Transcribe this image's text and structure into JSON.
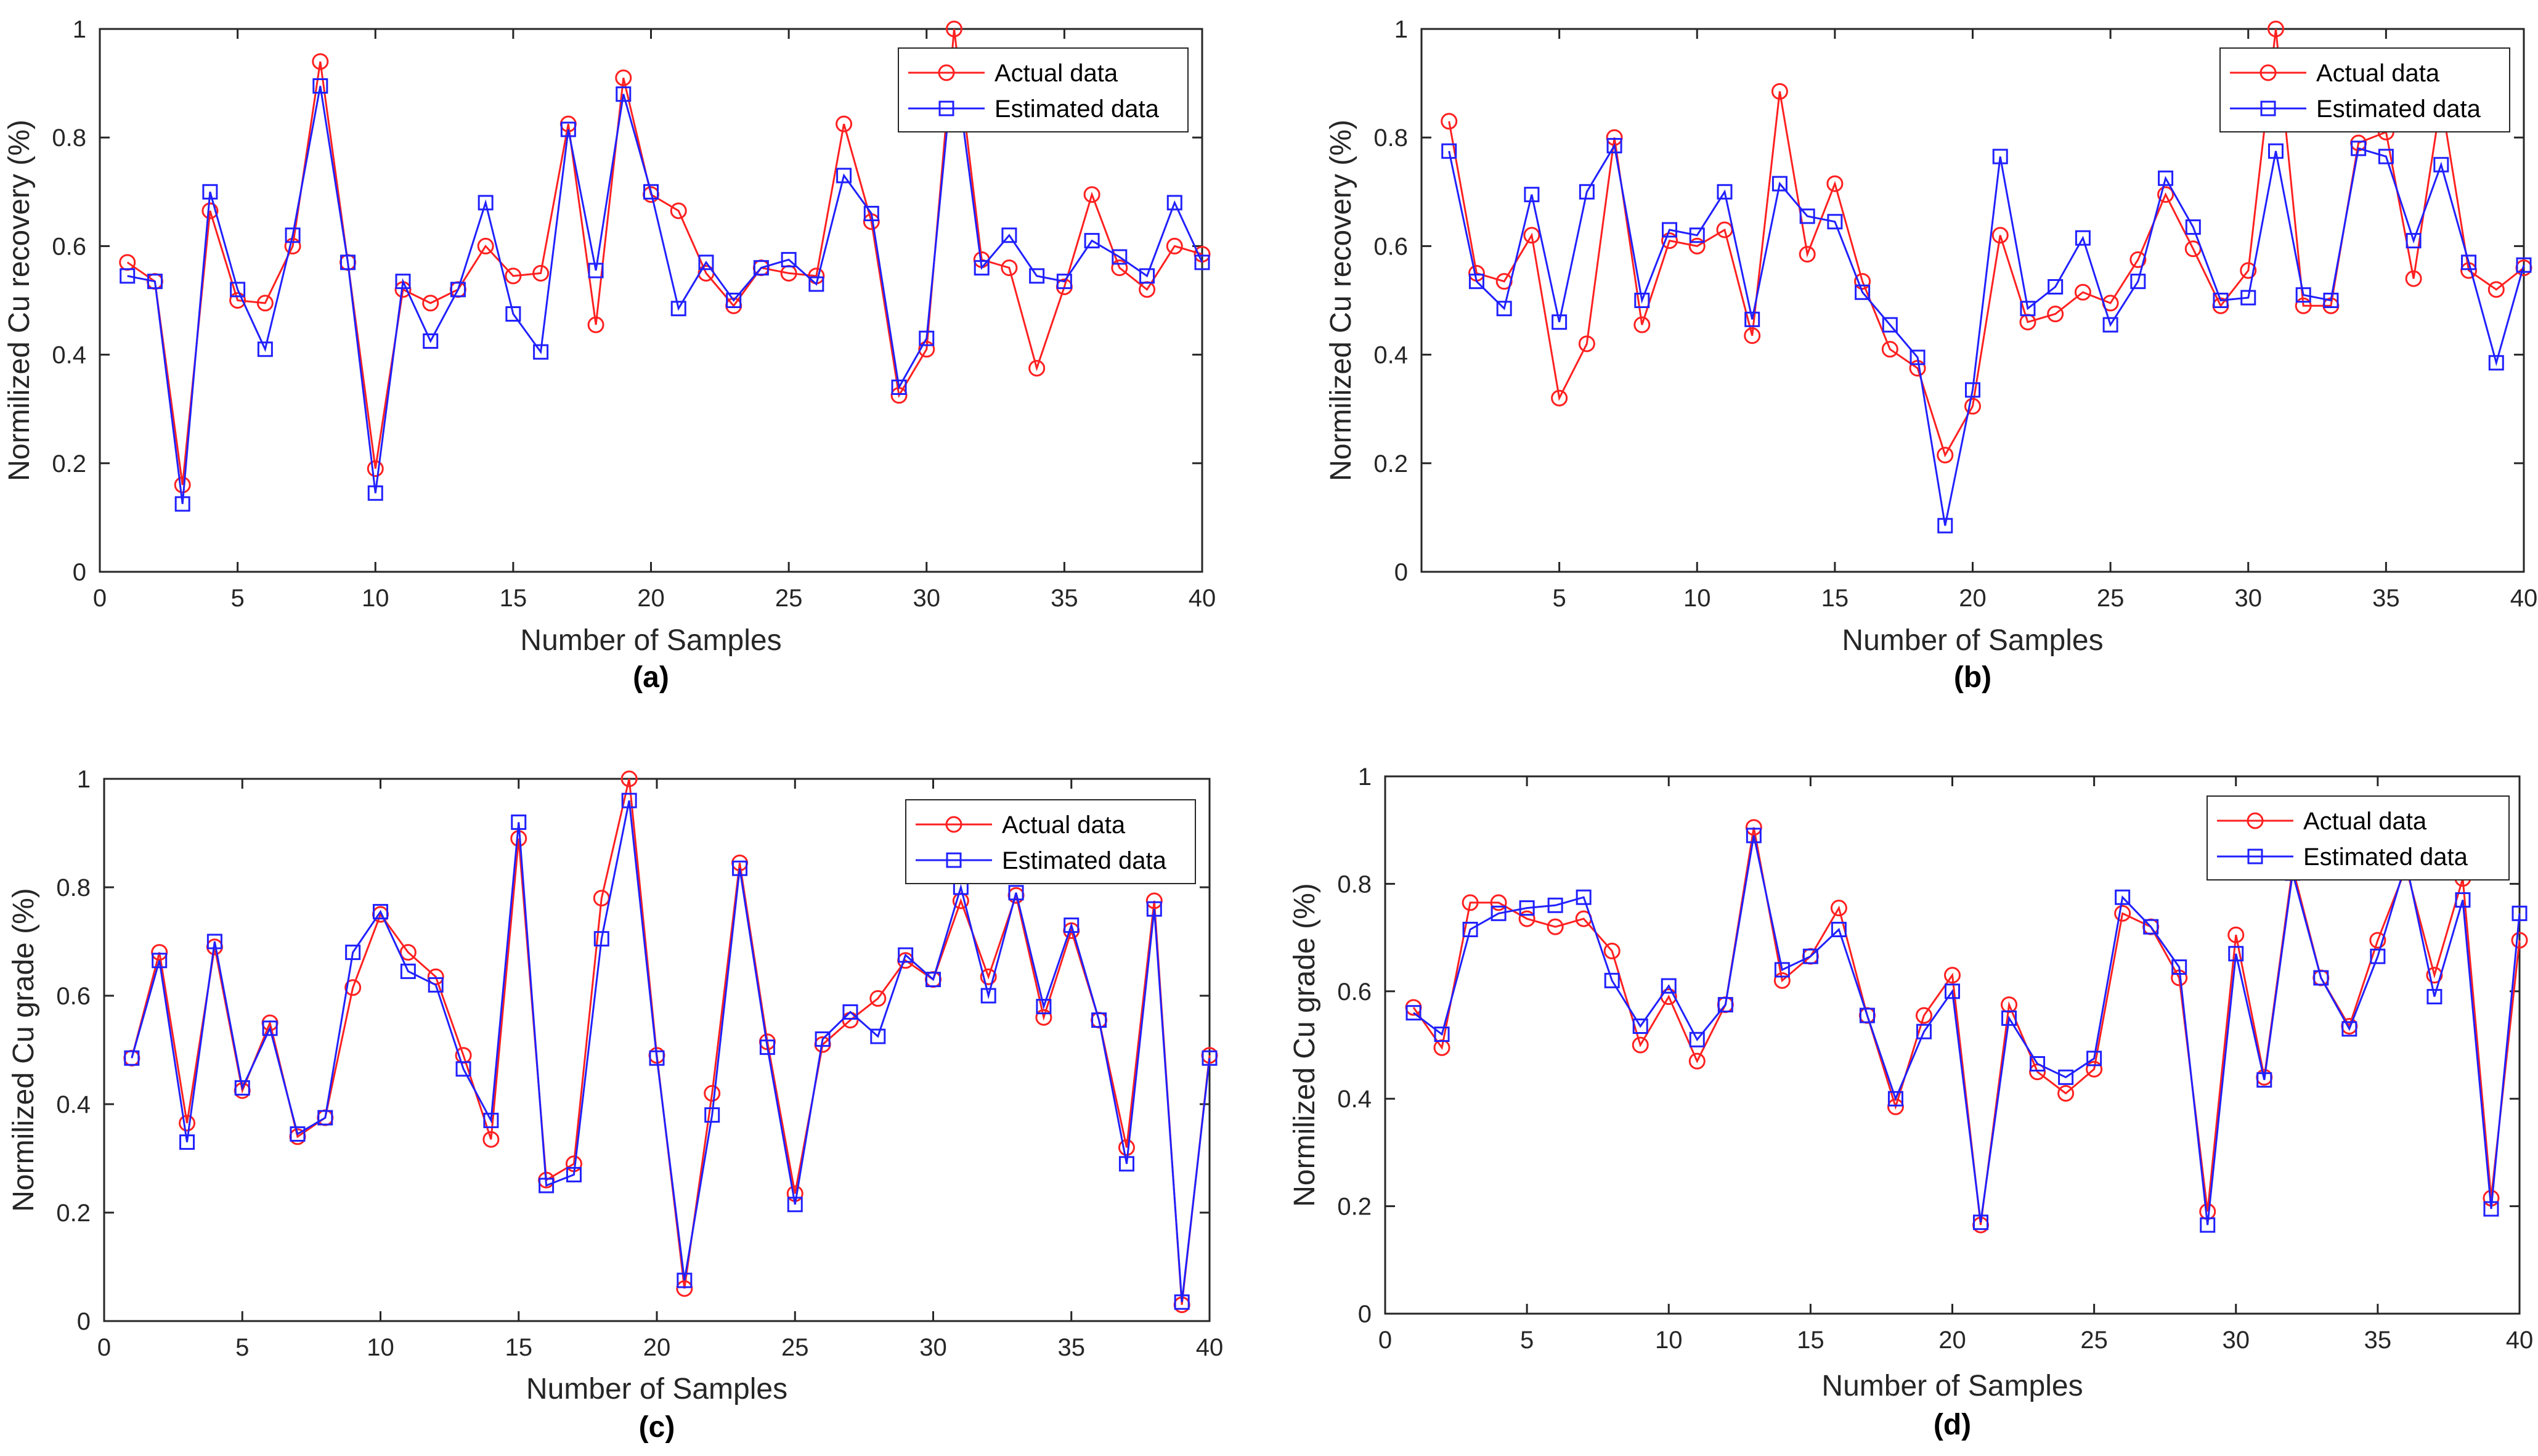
{
  "colors": {
    "actual": "#ff2020",
    "estimated": "#2020ff",
    "axis": "#262626"
  },
  "legend": {
    "actual": "Actual data",
    "estimated": "Estimated data"
  },
  "chart_data": [
    {
      "type": "line",
      "panel": "(a)",
      "xlabel": "Number of Samples",
      "ylabel": "Normilized Cu recovery (%)",
      "xlim": [
        0,
        40
      ],
      "ylim": [
        0,
        1
      ],
      "xticks": [
        "0",
        "5",
        "10",
        "15",
        "20",
        "25",
        "30",
        "35",
        "40"
      ],
      "yticks": [
        "0",
        "0.2",
        "0.4",
        "0.6",
        "0.8",
        "1"
      ],
      "grid": false,
      "legend_position": "top-right",
      "x": [
        1,
        2,
        3,
        4,
        5,
        6,
        7,
        8,
        9,
        10,
        11,
        12,
        13,
        14,
        15,
        16,
        17,
        18,
        19,
        20,
        21,
        22,
        23,
        24,
        25,
        26,
        27,
        28,
        29,
        30,
        31,
        32,
        33,
        34,
        35,
        36,
        37,
        38,
        39,
        40
      ],
      "series": [
        {
          "name": "Actual data",
          "marker": "circle",
          "values": [
            0.57,
            0.535,
            0.16,
            0.665,
            0.5,
            0.495,
            0.6,
            0.94,
            0.57,
            0.19,
            0.52,
            0.495,
            0.52,
            0.6,
            0.545,
            0.55,
            0.825,
            0.455,
            0.91,
            0.695,
            0.665,
            0.55,
            0.49,
            0.56,
            0.55,
            0.545,
            0.825,
            0.645,
            0.325,
            0.41,
            1.0,
            0.575,
            0.56,
            0.375,
            0.525,
            0.695,
            0.56,
            0.52,
            0.6,
            0.585
          ]
        },
        {
          "name": "Estimated data",
          "marker": "square",
          "values": [
            0.545,
            0.535,
            0.125,
            0.7,
            0.52,
            0.41,
            0.62,
            0.895,
            0.57,
            0.145,
            0.535,
            0.425,
            0.52,
            0.68,
            0.475,
            0.405,
            0.815,
            0.555,
            0.88,
            0.7,
            0.485,
            0.57,
            0.5,
            0.56,
            0.575,
            0.53,
            0.73,
            0.66,
            0.34,
            0.43,
            0.95,
            0.56,
            0.62,
            0.545,
            0.535,
            0.61,
            0.58,
            0.545,
            0.68,
            0.57
          ]
        }
      ]
    },
    {
      "type": "line",
      "panel": "(b)",
      "xlabel": "Number of Samples",
      "ylabel": "Normilized Cu recovery (%)",
      "xlim": [
        0,
        40
      ],
      "ylim": [
        0,
        1
      ],
      "xticks": [
        "5",
        "10",
        "15",
        "20",
        "25",
        "30",
        "35",
        "40"
      ],
      "yticks": [
        "0",
        "0.2",
        "0.4",
        "0.6",
        "0.8",
        "1"
      ],
      "grid": false,
      "legend_position": "top-right",
      "x": [
        1,
        2,
        3,
        4,
        5,
        6,
        7,
        8,
        9,
        10,
        11,
        12,
        13,
        14,
        15,
        16,
        17,
        18,
        19,
        20,
        21,
        22,
        23,
        24,
        25,
        26,
        27,
        28,
        29,
        30,
        31,
        32,
        33,
        34,
        35,
        36,
        37,
        38,
        39,
        40
      ],
      "series": [
        {
          "name": "Actual data",
          "marker": "circle",
          "values": [
            0.83,
            0.55,
            0.535,
            0.62,
            0.32,
            0.42,
            0.8,
            0.455,
            0.61,
            0.6,
            0.63,
            0.435,
            0.885,
            0.585,
            0.715,
            0.535,
            0.41,
            0.375,
            0.215,
            0.305,
            0.62,
            0.46,
            0.475,
            0.515,
            0.495,
            0.575,
            0.695,
            0.595,
            0.49,
            0.555,
            1.0,
            0.49,
            0.49,
            0.79,
            0.81,
            0.54,
            0.87,
            0.555,
            0.52,
            0.56
          ]
        },
        {
          "name": "Estimated data",
          "marker": "square",
          "values": [
            0.775,
            0.535,
            0.485,
            0.695,
            0.46,
            0.7,
            0.785,
            0.5,
            0.63,
            0.62,
            0.7,
            0.465,
            0.715,
            0.655,
            0.645,
            0.515,
            0.455,
            0.395,
            0.085,
            0.335,
            0.765,
            0.485,
            0.525,
            0.615,
            0.455,
            0.535,
            0.725,
            0.635,
            0.5,
            0.505,
            0.775,
            0.51,
            0.5,
            0.78,
            0.765,
            0.61,
            0.75,
            0.57,
            0.385,
            0.565
          ]
        }
      ]
    },
    {
      "type": "line",
      "panel": "(c)",
      "xlabel": "Number of Samples",
      "ylabel": "Normilized Cu grade (%)",
      "xlim": [
        0,
        40
      ],
      "ylim": [
        0,
        1
      ],
      "xticks": [
        "0",
        "5",
        "10",
        "15",
        "20",
        "25",
        "30",
        "35",
        "40"
      ],
      "yticks": [
        "0",
        "0.2",
        "0.4",
        "0.6",
        "0.8",
        "1"
      ],
      "grid": false,
      "legend_position": "top-right",
      "x": [
        1,
        2,
        3,
        4,
        5,
        6,
        7,
        8,
        9,
        10,
        11,
        12,
        13,
        14,
        15,
        16,
        17,
        18,
        19,
        20,
        21,
        22,
        23,
        24,
        25,
        26,
        27,
        28,
        29,
        30,
        31,
        32,
        33,
        34,
        35,
        36,
        37,
        38,
        39,
        40
      ],
      "series": [
        {
          "name": "Actual data",
          "marker": "circle",
          "values": [
            0.485,
            0.68,
            0.365,
            0.69,
            0.425,
            0.55,
            0.34,
            0.375,
            0.615,
            0.75,
            0.68,
            0.635,
            0.49,
            0.335,
            0.89,
            0.26,
            0.29,
            0.78,
            1.0,
            0.49,
            0.06,
            0.42,
            0.845,
            0.515,
            0.235,
            0.51,
            0.555,
            0.595,
            0.665,
            0.63,
            0.775,
            0.635,
            0.785,
            0.56,
            0.72,
            0.555,
            0.32,
            0.775,
            0.03,
            0.49
          ]
        },
        {
          "name": "Estimated data",
          "marker": "square",
          "values": [
            0.485,
            0.665,
            0.33,
            0.7,
            0.43,
            0.54,
            0.345,
            0.375,
            0.68,
            0.755,
            0.645,
            0.62,
            0.465,
            0.37,
            0.92,
            0.25,
            0.27,
            0.705,
            0.96,
            0.485,
            0.075,
            0.38,
            0.835,
            0.505,
            0.215,
            0.52,
            0.57,
            0.525,
            0.675,
            0.63,
            0.8,
            0.6,
            0.79,
            0.58,
            0.73,
            0.555,
            0.29,
            0.76,
            0.035,
            0.485
          ]
        }
      ]
    },
    {
      "type": "line",
      "panel": "(d)",
      "xlabel": "Number of Samples",
      "ylabel": "Normilized Cu grade (%)",
      "xlim": [
        0,
        40
      ],
      "ylim": [
        0,
        1
      ],
      "xticks": [
        "0",
        "5",
        "10",
        "15",
        "20",
        "25",
        "30",
        "35",
        "40"
      ],
      "yticks": [
        "0",
        "0.2",
        "0.4",
        "0.6",
        "0.8",
        "1"
      ],
      "grid": false,
      "legend_position": "top-right",
      "x": [
        1,
        2,
        3,
        4,
        5,
        6,
        7,
        8,
        9,
        10,
        11,
        12,
        13,
        14,
        15,
        16,
        17,
        18,
        19,
        20,
        21,
        22,
        23,
        24,
        25,
        26,
        27,
        28,
        29,
        30,
        31,
        32,
        33,
        34,
        35,
        36,
        37,
        38,
        39,
        40
      ],
      "series": [
        {
          "name": "Actual data",
          "marker": "circle",
          "values": [
            0.57,
            0.495,
            0.765,
            0.765,
            0.735,
            0.72,
            0.735,
            0.675,
            0.5,
            0.59,
            0.47,
            0.575,
            0.905,
            0.62,
            0.665,
            0.755,
            0.555,
            0.385,
            0.555,
            0.63,
            0.165,
            0.575,
            0.45,
            0.41,
            0.455,
            0.745,
            0.72,
            0.625,
            0.19,
            0.705,
            0.44,
            0.83,
            0.625,
            0.535,
            0.695,
            0.83,
            0.63,
            0.81,
            0.215,
            0.695
          ]
        },
        {
          "name": "Estimated data",
          "marker": "square",
          "values": [
            0.56,
            0.52,
            0.715,
            0.745,
            0.755,
            0.76,
            0.775,
            0.62,
            0.535,
            0.61,
            0.51,
            0.575,
            0.89,
            0.64,
            0.665,
            0.715,
            0.555,
            0.4,
            0.525,
            0.6,
            0.17,
            0.55,
            0.465,
            0.44,
            0.475,
            0.775,
            0.72,
            0.645,
            0.165,
            0.67,
            0.435,
            0.82,
            0.625,
            0.53,
            0.665,
            0.84,
            0.59,
            0.77,
            0.195,
            0.745
          ]
        }
      ]
    }
  ]
}
